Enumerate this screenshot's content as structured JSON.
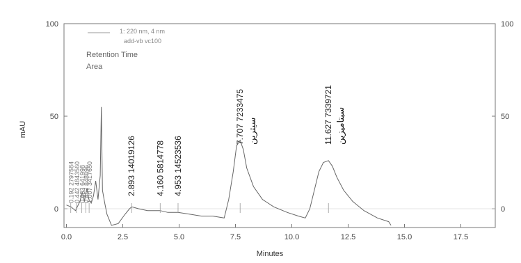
{
  "chart_data": {
    "type": "line",
    "xlabel": "Minutes",
    "ylabel": "mAU",
    "xlim": [
      -0.5,
      19.5
    ],
    "ylim": [
      -10,
      100
    ],
    "x_ticks": [
      "0.0",
      "2.5",
      "5.0",
      "7.5",
      "10.0",
      "12.5",
      "15.0",
      "17.5"
    ],
    "y_ticks_left": [
      "0",
      "50",
      "100"
    ],
    "y_ticks_right": [
      "0",
      "50",
      "100"
    ],
    "legend": {
      "detector": "1: 220 nm, 4 nm",
      "file": "add-vb vc100",
      "line1": "Retention Time",
      "line2": "Area"
    },
    "series": [
      {
        "x": [
          0.0,
          0.2,
          0.4,
          0.6,
          0.7,
          0.8,
          0.9,
          1.0,
          1.1,
          1.2,
          1.3,
          1.4,
          1.5,
          1.55,
          1.6,
          1.7,
          1.8,
          2.0,
          2.3,
          2.6,
          2.8,
          2.9,
          3.2,
          3.6,
          4.0,
          4.16,
          4.5,
          4.95,
          5.5,
          6.0,
          6.5,
          7.0,
          7.2,
          7.4,
          7.55,
          7.707,
          7.85,
          8.0,
          8.3,
          8.7,
          9.2,
          9.8,
          10.3,
          10.6,
          10.8,
          11.0,
          11.2,
          11.4,
          11.627,
          11.8,
          12.0,
          12.3,
          12.7,
          13.2,
          13.8,
          14.3,
          14.4
        ],
        "y": [
          2,
          1,
          -1,
          4,
          9,
          4,
          11,
          5,
          3,
          7,
          15,
          5,
          18,
          55,
          10,
          3,
          -3,
          -9,
          -8,
          -3,
          0,
          1,
          0,
          -1,
          -1,
          -1,
          -2,
          -2,
          -3,
          -4,
          -4,
          -5,
          5,
          20,
          34,
          37,
          32,
          22,
          12,
          5,
          1,
          -2,
          -4,
          -5,
          0,
          10,
          20,
          25,
          26,
          23,
          17,
          10,
          4,
          -1,
          -5,
          -7,
          -9
        ]
      }
    ],
    "peaks": [
      {
        "rt": "0.192",
        "area": "2797584"
      },
      {
        "rt": "0.442",
        "area": "4843560"
      },
      {
        "rt": "0.683",
        "area": "641998"
      },
      {
        "rt": "0.857",
        "area": "848896"
      },
      {
        "rt": "1.007",
        "area": "3417650"
      },
      {
        "rt": "2.893",
        "area": "14019126"
      },
      {
        "rt": "4.160",
        "area": "5814778"
      },
      {
        "rt": "4.953",
        "area": "14523536"
      },
      {
        "rt": "7.707",
        "area": "7233475",
        "name": "سيترين"
      },
      {
        "rt": "11.627",
        "area": "7339721",
        "name": "سبتاميزين"
      }
    ]
  }
}
